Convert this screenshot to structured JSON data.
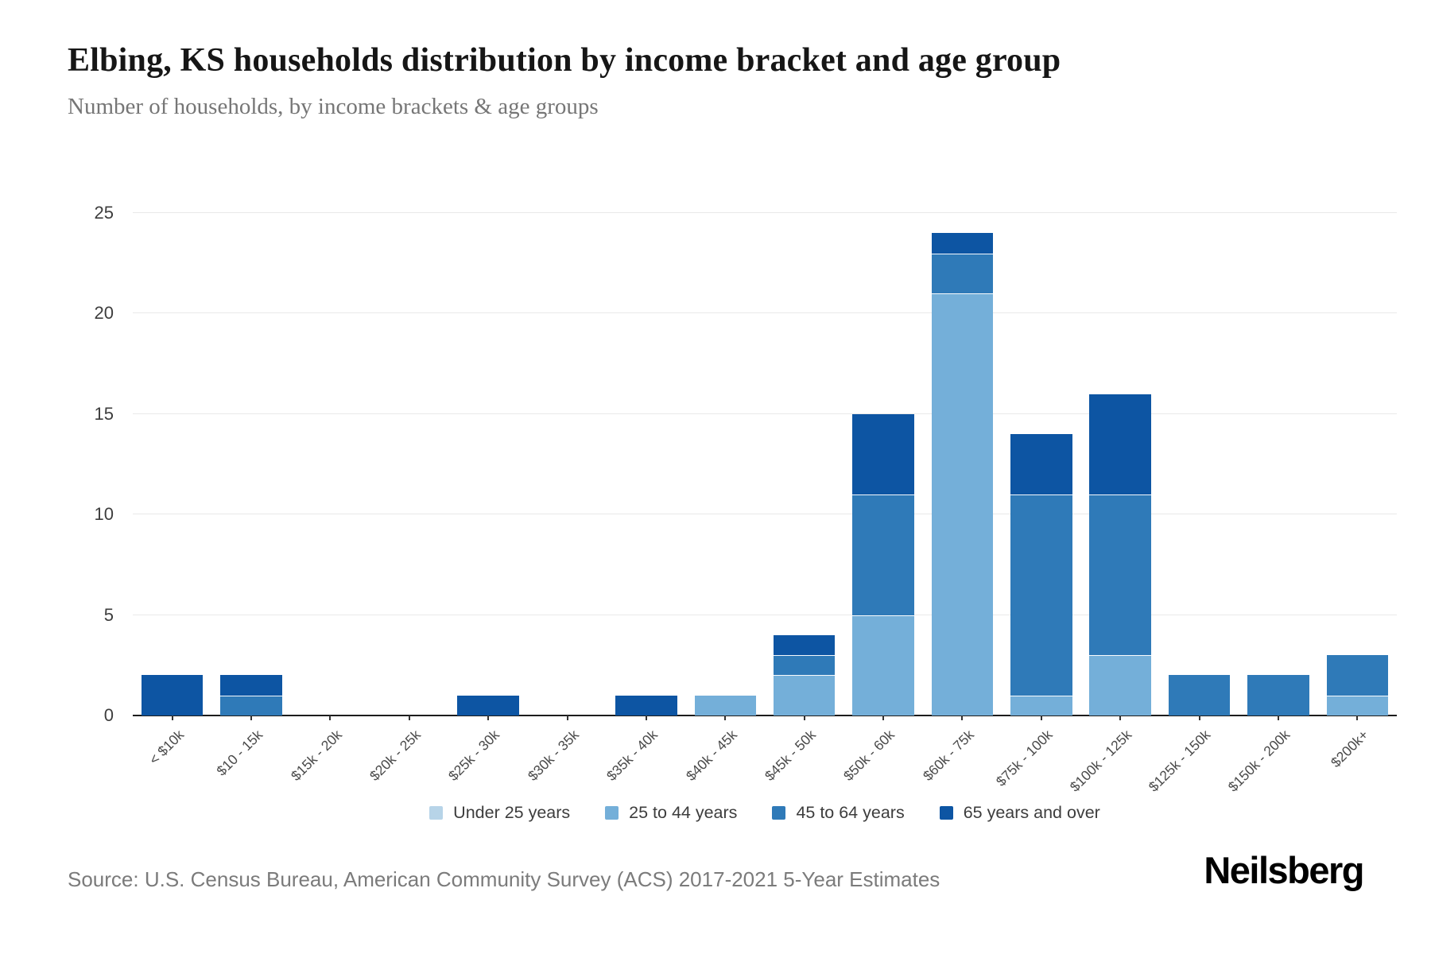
{
  "title": "Elbing, KS households distribution by income bracket and age group",
  "subtitle": "Number of households, by income brackets & age groups",
  "source": "Source: U.S. Census Bureau, American Community Survey (ACS) 2017-2021 5-Year Estimates",
  "logo": "Neilsberg",
  "colors": {
    "under_25": "#b7d4e8",
    "25_to_44": "#74afd9",
    "45_to_64": "#2f7ab8",
    "65_and_over": "#0d55a3",
    "gridline": "#e9e9e9",
    "axis": "#1c1c1c"
  },
  "chart_data": {
    "type": "bar",
    "stacked": true,
    "title": "Elbing, KS households distribution by income bracket and age group",
    "xlabel": "",
    "ylabel": "Number of households",
    "ylim": [
      0,
      25
    ],
    "yticks": [
      0,
      5,
      10,
      15,
      20,
      25
    ],
    "grid": true,
    "legend_position": "bottom",
    "categories": [
      "< $10k",
      "$10 - 15k",
      "$15k - 20k",
      "$20k - 25k",
      "$25k - 30k",
      "$30k - 35k",
      "$35k - 40k",
      "$40k - 45k",
      "$45k - 50k",
      "$50k - 60k",
      "$60k - 75k",
      "$75k - 100k",
      "$100k - 125k",
      "$125k - 150k",
      "$150k - 200k",
      "$200k+"
    ],
    "series": [
      {
        "name": "Under 25 years",
        "color": "#b7d4e8",
        "values": [
          0,
          0,
          0,
          0,
          0,
          0,
          0,
          0,
          0,
          0,
          0,
          0,
          0,
          0,
          0,
          0
        ]
      },
      {
        "name": "25 to 44 years",
        "color": "#74afd9",
        "values": [
          0,
          0,
          0,
          0,
          0,
          0,
          0,
          1,
          2,
          5,
          21,
          1,
          3,
          0,
          0,
          1
        ]
      },
      {
        "name": "45 to 64 years",
        "color": "#2f7ab8",
        "values": [
          0,
          1,
          0,
          0,
          0,
          0,
          0,
          0,
          1,
          6,
          2,
          10,
          8,
          2,
          2,
          2
        ]
      },
      {
        "name": "65 years and over",
        "color": "#0d55a3",
        "values": [
          2,
          1,
          0,
          0,
          1,
          0,
          1,
          0,
          1,
          4,
          1,
          3,
          5,
          0,
          0,
          0
        ]
      }
    ]
  }
}
